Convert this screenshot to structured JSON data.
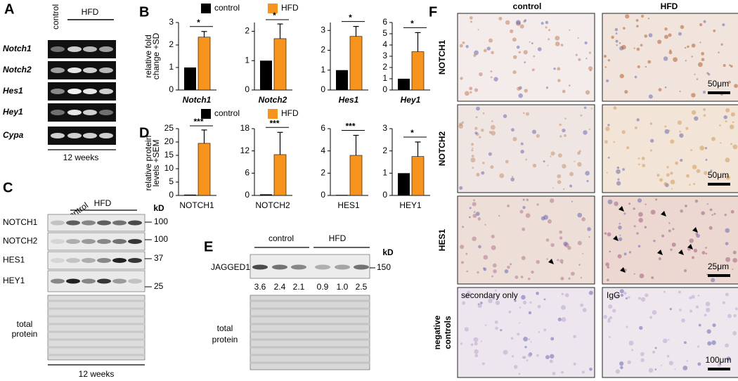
{
  "panel_A": {
    "letter": "A",
    "control": "control",
    "hfd": "HFD",
    "genes": [
      "Notch1",
      "Notch2",
      "Hes1",
      "Hey1",
      "Cypa"
    ],
    "duration": "12 weeks"
  },
  "panel_B": {
    "letter": "B",
    "ylabel": [
      "relative fold",
      "change +SD"
    ]
  },
  "panel_C": {
    "letter": "C",
    "control": "control",
    "hfd": "HFD",
    "unit": "kD",
    "proteins": [
      "NOTCH1",
      "NOTCH2",
      "HES1",
      "HEY1"
    ],
    "sizes": [
      "100",
      "100",
      "37",
      "25"
    ],
    "loading": [
      "total",
      "protein"
    ],
    "duration": "12 weeks"
  },
  "panel_D": {
    "letter": "D",
    "ylabel": [
      "relative protein",
      "levels +SEM"
    ]
  },
  "panel_E": {
    "letter": "E",
    "control": "control",
    "hfd": "HFD",
    "unit": "kD",
    "protein": "JAGGED1",
    "size": "150",
    "quantification": [
      "3.6",
      "2.4",
      "2.1",
      "0.9",
      "1.0",
      "2.5"
    ],
    "loading": [
      "total",
      "protein"
    ]
  },
  "panel_F": {
    "letter": "F",
    "control": "control",
    "hfd": "HFD",
    "rows": [
      "NOTCH1",
      "NOTCH2",
      "HES1"
    ],
    "negative": [
      "negative",
      "controls"
    ],
    "scales": [
      "50μm",
      "50μm",
      "25μm",
      "100μm"
    ],
    "secondary": "secondary only",
    "igg": "IgG"
  },
  "chart_data": [
    {
      "type": "bar",
      "categories": [
        "Notch1"
      ],
      "series": [
        {
          "name": "control",
          "color": "#000000",
          "values": [
            1
          ]
        },
        {
          "name": "HFD",
          "color": "#f7941d",
          "values": [
            2.35
          ],
          "errors": [
            0.25
          ]
        }
      ],
      "ylim": [
        0,
        3
      ],
      "yticks": [
        0,
        1,
        2,
        3
      ],
      "annotation": "*"
    },
    {
      "type": "bar",
      "categories": [
        "Notch2"
      ],
      "series": [
        {
          "name": "control",
          "color": "#000000",
          "values": [
            1
          ]
        },
        {
          "name": "HFD",
          "color": "#f7941d",
          "values": [
            1.75
          ],
          "errors": [
            0.5
          ]
        }
      ],
      "ylim": [
        0,
        2.3
      ],
      "yticks": [
        0,
        1,
        2
      ],
      "annotation": "*"
    },
    {
      "type": "bar",
      "categories": [
        "Hes1"
      ],
      "series": [
        {
          "name": "control",
          "color": "#000000",
          "values": [
            1
          ]
        },
        {
          "name": "HFD",
          "color": "#f7941d",
          "values": [
            2.7
          ],
          "errors": [
            0.5
          ]
        }
      ],
      "ylim": [
        0,
        3.4
      ],
      "yticks": [
        0,
        1,
        2,
        3
      ],
      "annotation": "*"
    },
    {
      "type": "bar",
      "categories": [
        "Hey1"
      ],
      "series": [
        {
          "name": "control",
          "color": "#000000",
          "values": [
            1
          ]
        },
        {
          "name": "HFD",
          "color": "#f7941d",
          "values": [
            3.4
          ],
          "errors": [
            1.7
          ]
        }
      ],
      "ylim": [
        0,
        6
      ],
      "yticks": [
        0,
        1,
        2,
        3,
        4,
        5,
        6
      ],
      "annotation": "*"
    },
    {
      "type": "bar",
      "categories": [
        "NOTCH1"
      ],
      "series": [
        {
          "name": "control",
          "color": "#000000",
          "values": [
            0.3
          ]
        },
        {
          "name": "HFD",
          "color": "#f7941d",
          "values": [
            19.5
          ],
          "errors": [
            5
          ]
        }
      ],
      "ylim": [
        0,
        25
      ],
      "yticks": [
        0,
        5,
        10,
        15,
        20,
        25
      ],
      "annotation": "***"
    },
    {
      "type": "bar",
      "categories": [
        "NOTCH2"
      ],
      "series": [
        {
          "name": "control",
          "color": "#000000",
          "values": [
            0.3
          ]
        },
        {
          "name": "HFD",
          "color": "#f7941d",
          "values": [
            11
          ],
          "errors": [
            6
          ]
        }
      ],
      "ylim": [
        0,
        18
      ],
      "yticks": [
        0,
        6,
        12,
        18
      ],
      "annotation": "***"
    },
    {
      "type": "bar",
      "categories": [
        "HES1"
      ],
      "series": [
        {
          "name": "control",
          "color": "#000000",
          "values": [
            0.05
          ]
        },
        {
          "name": "HFD",
          "color": "#f7941d",
          "values": [
            3.6
          ],
          "errors": [
            1.8
          ]
        }
      ],
      "ylim": [
        0,
        6
      ],
      "yticks": [
        0,
        2,
        4,
        6
      ],
      "annotation": "***"
    },
    {
      "type": "bar",
      "categories": [
        "HEY1"
      ],
      "series": [
        {
          "name": "control",
          "color": "#000000",
          "values": [
            1
          ]
        },
        {
          "name": "HFD",
          "color": "#f7941d",
          "values": [
            1.75
          ],
          "errors": [
            0.65
          ]
        }
      ],
      "ylim": [
        0,
        3
      ],
      "yticks": [
        0,
        1,
        2,
        3
      ],
      "annotation": "*"
    }
  ]
}
